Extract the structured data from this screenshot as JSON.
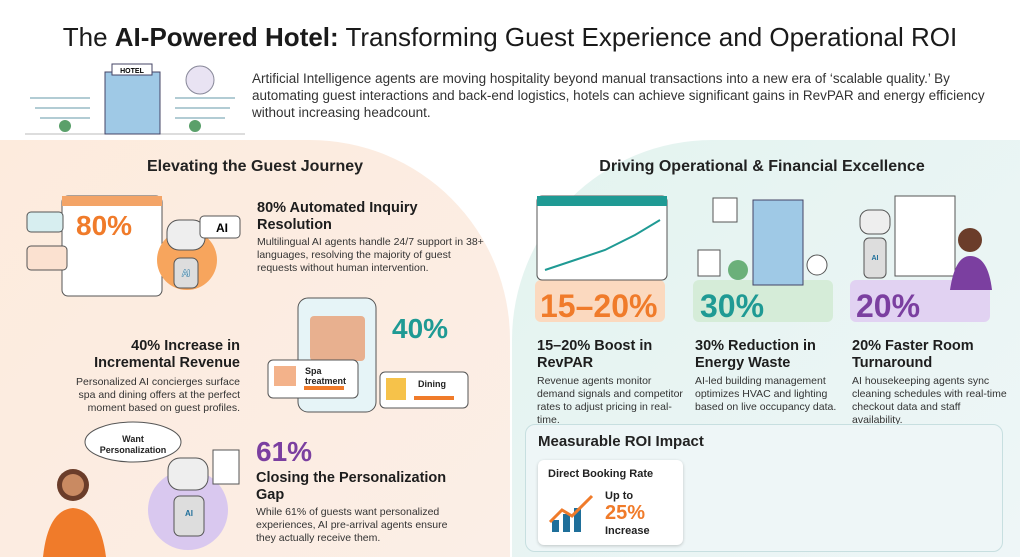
{
  "header": {
    "title": {
      "prefix": "The",
      "bold": "AI-Powered Hotel:",
      "rest": "Transforming Guest Experience and Operational ROI"
    },
    "hotel_sign": "HOTEL",
    "intro": "Artificial Intelligence agents are moving hospitality beyond manual transactions into a new era of ‘scalable quality.’ By automating guest interactions and back-end logistics, hotels can achieve significant gains in RevPAR and energy efficiency without increasing headcount."
  },
  "guest": {
    "heading": "Elevating the Guest Journey",
    "items": [
      {
        "stat": "80%",
        "title": "80% Automated Inquiry Resolution",
        "body": "Multilingual AI agents handle 24/7 support in 38+ languages, resolving the majority of guest requests without human intervention.",
        "badge": "AI",
        "translate": "AI"
      },
      {
        "stat": "40%",
        "title": "40% Increase in Incremental Revenue",
        "body": "Personalized AI concierges surface spa and dining offers at the perfect moment based on guest profiles.",
        "offer_1": "Spa treatment",
        "offer_2": "Dining"
      },
      {
        "stat": "61%",
        "title": "Closing the Personalization Gap",
        "body": "While 61% of guests want personalized experiences, AI pre-arrival agents ensure they actually receive them.",
        "bubble": "Want Personalization",
        "badge": "AI"
      }
    ]
  },
  "operations": {
    "heading": "Driving Operational & Financial Excellence",
    "items": [
      {
        "stat": "15–20%",
        "title": "15–20% Boost in RevPAR",
        "body": "Revenue agents monitor demand signals and competitor rates to adjust pricing in real-time."
      },
      {
        "stat": "30%",
        "title": "30% Reduction in Energy Waste",
        "body": "AI-led building management optimizes HVAC and lighting based on live occupancy data."
      },
      {
        "stat": "20%",
        "title": "20% Faster Room Turnaround",
        "body": "AI housekeeping agents sync cleaning schedules with real-time checkout data and staff availability.",
        "badge": "AI"
      }
    ]
  },
  "roi": {
    "heading": "Measurable ROI Impact",
    "card_title": "Direct Booking Rate",
    "prefix": "Up to",
    "value": "25%",
    "suffix": "Increase"
  }
}
